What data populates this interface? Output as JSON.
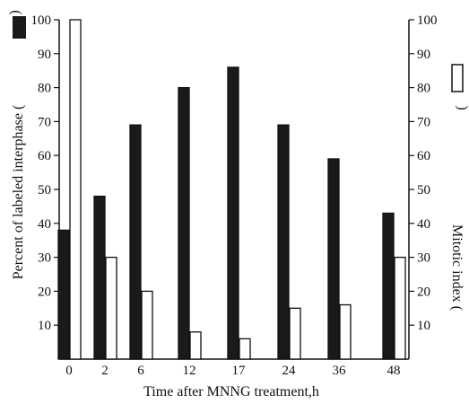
{
  "chart_data": {
    "type": "bar",
    "categories": [
      "0",
      "2",
      "6",
      "12",
      "17",
      "24",
      "36",
      "48"
    ],
    "x_positions": [
      0,
      2,
      6,
      12,
      17,
      24,
      36,
      48
    ],
    "x_scale": "nonlinear (tick positions as printed)",
    "series": [
      {
        "name": "Percent of labeled interphase",
        "axis": "left",
        "fill": "#1a1a1a",
        "values": [
          38,
          48,
          69,
          80,
          86,
          69,
          59,
          43
        ]
      },
      {
        "name": "Mitotic index",
        "axis": "right",
        "fill": "#ffffff",
        "values": [
          100,
          30,
          20,
          8,
          6,
          15,
          16,
          30
        ]
      }
    ],
    "xlabel": "Time after MNNG treatment,h",
    "ylabel_left": "Percent of labeled interphase (",
    "ylabel_right": "Mitotic index (",
    "ylim": [
      0,
      100
    ],
    "left_ticks": [
      "10",
      "20",
      "30",
      "40",
      "50",
      "60",
      "70",
      "80",
      "90",
      "100"
    ],
    "right_ticks": [
      "10",
      "20",
      "30",
      "40",
      "50",
      "60",
      "70",
      "80",
      "90",
      "100"
    ],
    "grid": false,
    "legend": "inline swatches in axis titles"
  }
}
